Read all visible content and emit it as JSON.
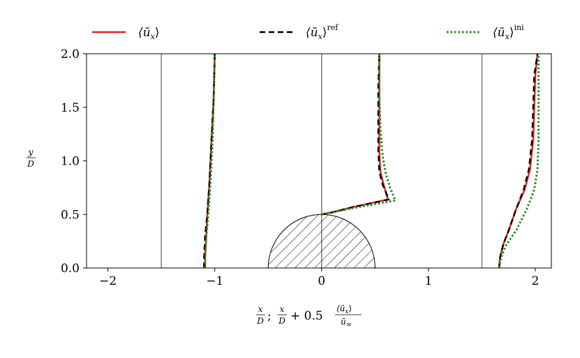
{
  "chart_data": {
    "type": "line",
    "legend_position": "top",
    "xlim": [
      -2.2,
      2.15
    ],
    "ylim": [
      0,
      2.0
    ],
    "xticks": [
      -2,
      -1,
      0,
      1,
      2
    ],
    "xtick_labels": [
      "−2",
      "−1",
      "0",
      "1",
      "2"
    ],
    "yticks": [
      0.0,
      0.5,
      1.0,
      1.5,
      2.0
    ],
    "ytick_labels": [
      "0.0",
      "0.5",
      "1.0",
      "1.5",
      "2.0"
    ],
    "grid": false,
    "xlabel": {
      "frac1_num": "x",
      "frac1_den": "D",
      "separator": ";",
      "frac2_num": "x",
      "frac2_den": "D",
      "plus_term": "+ 0.5",
      "frac3_num": "⟨ū",
      "frac3_num_sub": "x",
      "frac3_num_close": "⟩",
      "frac3_den": "ū",
      "frac3_den_sub": "∞"
    },
    "ylabel": {
      "num": "y",
      "den": "D"
    },
    "reference_lines_x": [
      -1.5,
      0,
      1.5
    ],
    "cylinder": {
      "center_x": 0,
      "radius": 0.5
    },
    "series": [
      {
        "name": "⟨ū",
        "name_sub": "x",
        "name_close": "⟩",
        "name_sup": "",
        "color": "#e8211b",
        "style": "solid",
        "profiles": [
          [
            [
              -1.09,
              0.0
            ],
            [
              -1.09,
              0.1
            ],
            [
              -1.08,
              0.3
            ],
            [
              -1.07,
              0.5
            ],
            [
              -1.05,
              0.8
            ],
            [
              -1.03,
              1.2
            ],
            [
              -1.01,
              1.6
            ],
            [
              -1.0,
              2.0
            ]
          ],
          [
            [
              0.0,
              0.5
            ],
            [
              0.1,
              0.52
            ],
            [
              0.3,
              0.57
            ],
            [
              0.62,
              0.64
            ],
            [
              0.58,
              0.78
            ],
            [
              0.55,
              0.9
            ],
            [
              0.54,
              1.1
            ],
            [
              0.54,
              1.4
            ],
            [
              0.54,
              1.7
            ],
            [
              0.54,
              2.0
            ]
          ],
          [
            [
              1.66,
              0.0
            ],
            [
              1.67,
              0.1
            ],
            [
              1.7,
              0.22
            ],
            [
              1.75,
              0.35
            ],
            [
              1.82,
              0.55
            ],
            [
              1.9,
              0.73
            ],
            [
              1.95,
              0.92
            ],
            [
              1.98,
              1.2
            ],
            [
              1.99,
              1.5
            ],
            [
              2.0,
              1.8
            ],
            [
              2.02,
              2.0
            ]
          ]
        ]
      },
      {
        "name": "⟨ū",
        "name_sub": "x",
        "name_close": "⟩",
        "name_sup": "ref",
        "color": "#000000",
        "style": "dashed",
        "profiles": [
          [
            [
              -1.1,
              0.0
            ],
            [
              -1.1,
              0.1
            ],
            [
              -1.09,
              0.3
            ],
            [
              -1.07,
              0.5
            ],
            [
              -1.05,
              0.8
            ],
            [
              -1.03,
              1.2
            ],
            [
              -1.01,
              1.6
            ],
            [
              -1.0,
              2.0
            ]
          ],
          [
            [
              0.0,
              0.5
            ],
            [
              0.1,
              0.52
            ],
            [
              0.3,
              0.57
            ],
            [
              0.63,
              0.64
            ],
            [
              0.57,
              0.78
            ],
            [
              0.54,
              0.9
            ],
            [
              0.53,
              1.1
            ],
            [
              0.53,
              1.4
            ],
            [
              0.53,
              1.7
            ],
            [
              0.54,
              2.0
            ]
          ],
          [
            [
              1.66,
              0.0
            ],
            [
              1.67,
              0.1
            ],
            [
              1.7,
              0.22
            ],
            [
              1.75,
              0.35
            ],
            [
              1.82,
              0.55
            ],
            [
              1.89,
              0.73
            ],
            [
              1.94,
              0.92
            ],
            [
              1.97,
              1.2
            ],
            [
              1.98,
              1.5
            ],
            [
              1.99,
              1.8
            ],
            [
              2.02,
              2.0
            ]
          ]
        ]
      },
      {
        "name": "⟨ū",
        "name_sub": "x",
        "name_close": "⟩",
        "name_sup": "ini",
        "color": "#1a8a1a",
        "style": "dotted",
        "profiles": [
          [
            [
              -1.09,
              0.0
            ],
            [
              -1.09,
              0.1
            ],
            [
              -1.08,
              0.3
            ],
            [
              -1.06,
              0.5
            ],
            [
              -1.04,
              0.8
            ],
            [
              -1.02,
              1.2
            ],
            [
              -1.01,
              1.6
            ],
            [
              -1.0,
              2.0
            ]
          ],
          [
            [
              0.0,
              0.5
            ],
            [
              0.1,
              0.52
            ],
            [
              0.3,
              0.56
            ],
            [
              0.69,
              0.63
            ],
            [
              0.64,
              0.75
            ],
            [
              0.6,
              0.88
            ],
            [
              0.57,
              1.05
            ],
            [
              0.55,
              1.3
            ],
            [
              0.54,
              1.6
            ],
            [
              0.54,
              2.0
            ]
          ],
          [
            [
              1.66,
              0.0
            ],
            [
              1.68,
              0.1
            ],
            [
              1.73,
              0.22
            ],
            [
              1.82,
              0.35
            ],
            [
              1.92,
              0.55
            ],
            [
              1.99,
              0.73
            ],
            [
              2.02,
              0.92
            ],
            [
              2.03,
              1.2
            ],
            [
              2.03,
              1.5
            ],
            [
              2.03,
              1.8
            ],
            [
              2.03,
              2.0
            ]
          ]
        ]
      }
    ]
  }
}
